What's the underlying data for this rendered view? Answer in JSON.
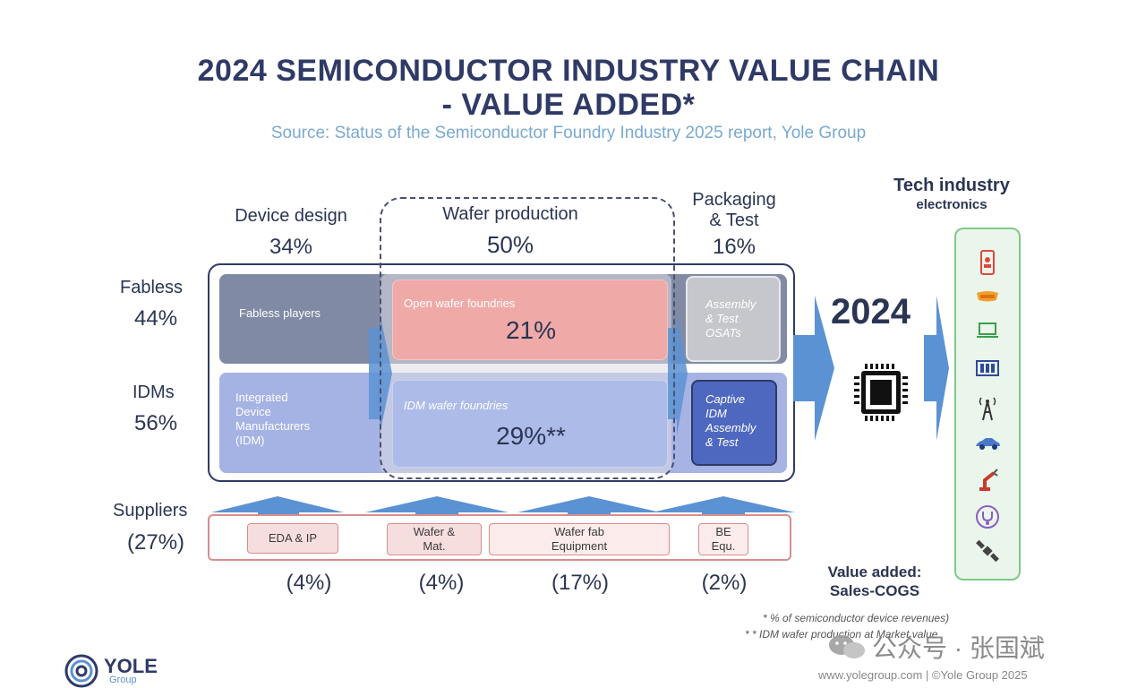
{
  "header": {
    "title_line1": "2024 SEMICONDUCTOR INDUSTRY VALUE CHAIN",
    "title_line2": "- VALUE ADDED*",
    "subtitle": "Source: Status of the Semiconductor Foundry Industry 2025 report, Yole Group"
  },
  "columns": {
    "device_design": {
      "label": "Device design",
      "pct": "34%"
    },
    "wafer_production": {
      "label": "Wafer production",
      "pct": "50%"
    },
    "packaging": {
      "label_line1": "Packaging",
      "label_line2": "& Test",
      "pct": "16%"
    }
  },
  "rows": {
    "fabless": {
      "label": "Fabless",
      "pct": "44%"
    },
    "idms": {
      "label": "IDMs",
      "pct": "56%"
    }
  },
  "cells": {
    "fabless_players": "Fabless players",
    "open_foundries_label": "Open wafer foundries",
    "open_foundries_pct": "21%",
    "osat_line1": "Assembly",
    "osat_line2": "& Test",
    "osat_line3": "OSATs",
    "idm_line1": "Integrated",
    "idm_line2": "Device",
    "idm_line3": "Manufacturers",
    "idm_line4": "(IDM)",
    "idm_foundries_label": "IDM wafer foundries",
    "idm_foundries_pct": "29%**",
    "captive_line1": "Captive",
    "captive_line2": "IDM",
    "captive_line3": "Assembly",
    "captive_line4": "& Test"
  },
  "year": "2024",
  "tech": {
    "title": "Tech industry",
    "subtitle": "electronics",
    "icons": [
      "smartphone-icon",
      "vr-headset-icon",
      "laptop-icon",
      "server-rack-icon",
      "cell-tower-icon",
      "car-icon",
      "robot-arm-icon",
      "stethoscope-icon",
      "satellite-icon"
    ]
  },
  "suppliers": {
    "label": "Suppliers",
    "pct": "(27%)",
    "items": [
      {
        "line1": "EDA & IP",
        "line2": "",
        "pct": "(4%)"
      },
      {
        "line1": "Wafer &",
        "line2": "Mat.",
        "pct": "(4%)"
      },
      {
        "line1": "Wafer fab",
        "line2": "Equipment",
        "pct": "(17%)"
      },
      {
        "line1": "BE",
        "line2": "Equ.",
        "pct": "(2%)"
      }
    ]
  },
  "value_added": {
    "line1": "Value added:",
    "line2": "Sales-COGS"
  },
  "footnotes": {
    "note1": "* % of semiconductor device revenues)",
    "note2": "* * IDM wafer production at Market value"
  },
  "watermark": "公众号 · 张国斌",
  "footer": {
    "logo_main": "YOLE",
    "logo_sub": "Group",
    "copyright": "www.yolegroup.com | ©Yole Group 2025"
  },
  "colors": {
    "navy": "#2f3a66",
    "slate_cell": "#8189a3",
    "open_foundry_fill": "#eeaaa7",
    "idm_fill": "#a9b8e8",
    "captive_fill": "#4d67c0",
    "arrow_blue": "#5b92d3",
    "supplier_pink": "#f7dede",
    "tech_green": "#7fc98a"
  }
}
